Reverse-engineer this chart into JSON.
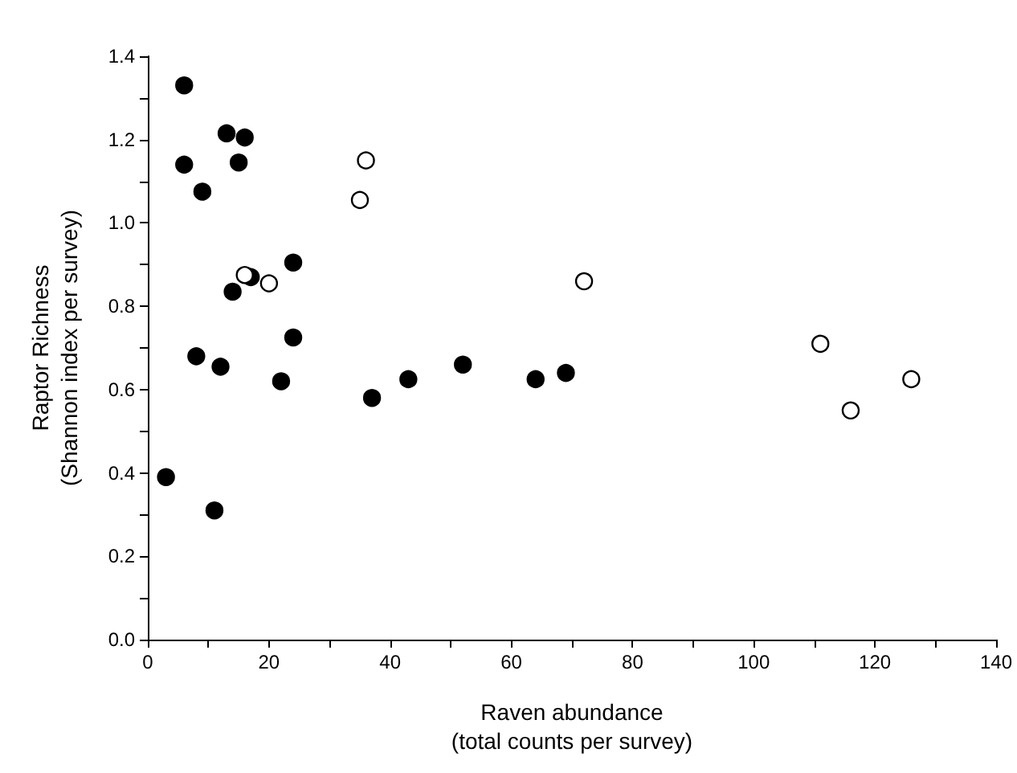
{
  "chart_data": {
    "type": "scatter",
    "xlabel": "Raven abundance\n(total counts per survey)",
    "ylabel": "Raptor Richness\n(Shannon index per survey)",
    "xlim": [
      0,
      140
    ],
    "ylim": [
      0,
      1.4
    ],
    "xticks": [
      0,
      {
        "value": 10,
        "label": null
      },
      20,
      {
        "value": 30,
        "label": null
      },
      40,
      {
        "value": 50,
        "label": null
      },
      60,
      {
        "value": 70,
        "label": null
      },
      80,
      {
        "value": 90,
        "label": null
      },
      100,
      {
        "value": 110,
        "label": null
      },
      120,
      {
        "value": 130,
        "label": null
      },
      140
    ],
    "yticks": [
      {
        "value": 0,
        "label": "0.0"
      },
      {
        "value": 0.1,
        "label": null
      },
      {
        "value": 0.2,
        "label": "0.2"
      },
      {
        "value": 0.3,
        "label": null
      },
      {
        "value": 0.4,
        "label": "0.4"
      },
      {
        "value": 0.5,
        "label": null
      },
      {
        "value": 0.6,
        "label": "0.6"
      },
      {
        "value": 0.7,
        "label": null
      },
      {
        "value": 0.8,
        "label": "0.8"
      },
      {
        "value": 0.9,
        "label": null
      },
      {
        "value": 1.0,
        "label": "1.0"
      },
      {
        "value": 1.1,
        "label": null
      },
      {
        "value": 1.2,
        "label": "1.2"
      },
      {
        "value": 1.3,
        "label": null
      },
      {
        "value": 1.4,
        "label": "1.4"
      }
    ],
    "grid": false,
    "marker": "circle",
    "series": [
      {
        "color": "#000000",
        "x": [
          6,
          13,
          16,
          6,
          15,
          9,
          24,
          17,
          14,
          24,
          8,
          12,
          22,
          37,
          43,
          52,
          64,
          69,
          3,
          11
        ],
        "values": [
          1.33,
          1.215,
          1.205,
          1.14,
          1.145,
          1.075,
          0.905,
          0.87,
          0.835,
          0.725,
          0.68,
          0.655,
          0.62,
          0.58,
          0.625,
          0.66,
          0.625,
          0.64,
          0.39,
          0.31
        ]
      },
      {
        "color": "#ffffff",
        "x": [
          36,
          35,
          16,
          20,
          72,
          111,
          116,
          126
        ],
        "values": [
          1.15,
          1.055,
          0.875,
          0.855,
          0.86,
          0.71,
          0.55,
          0.625
        ]
      }
    ]
  }
}
